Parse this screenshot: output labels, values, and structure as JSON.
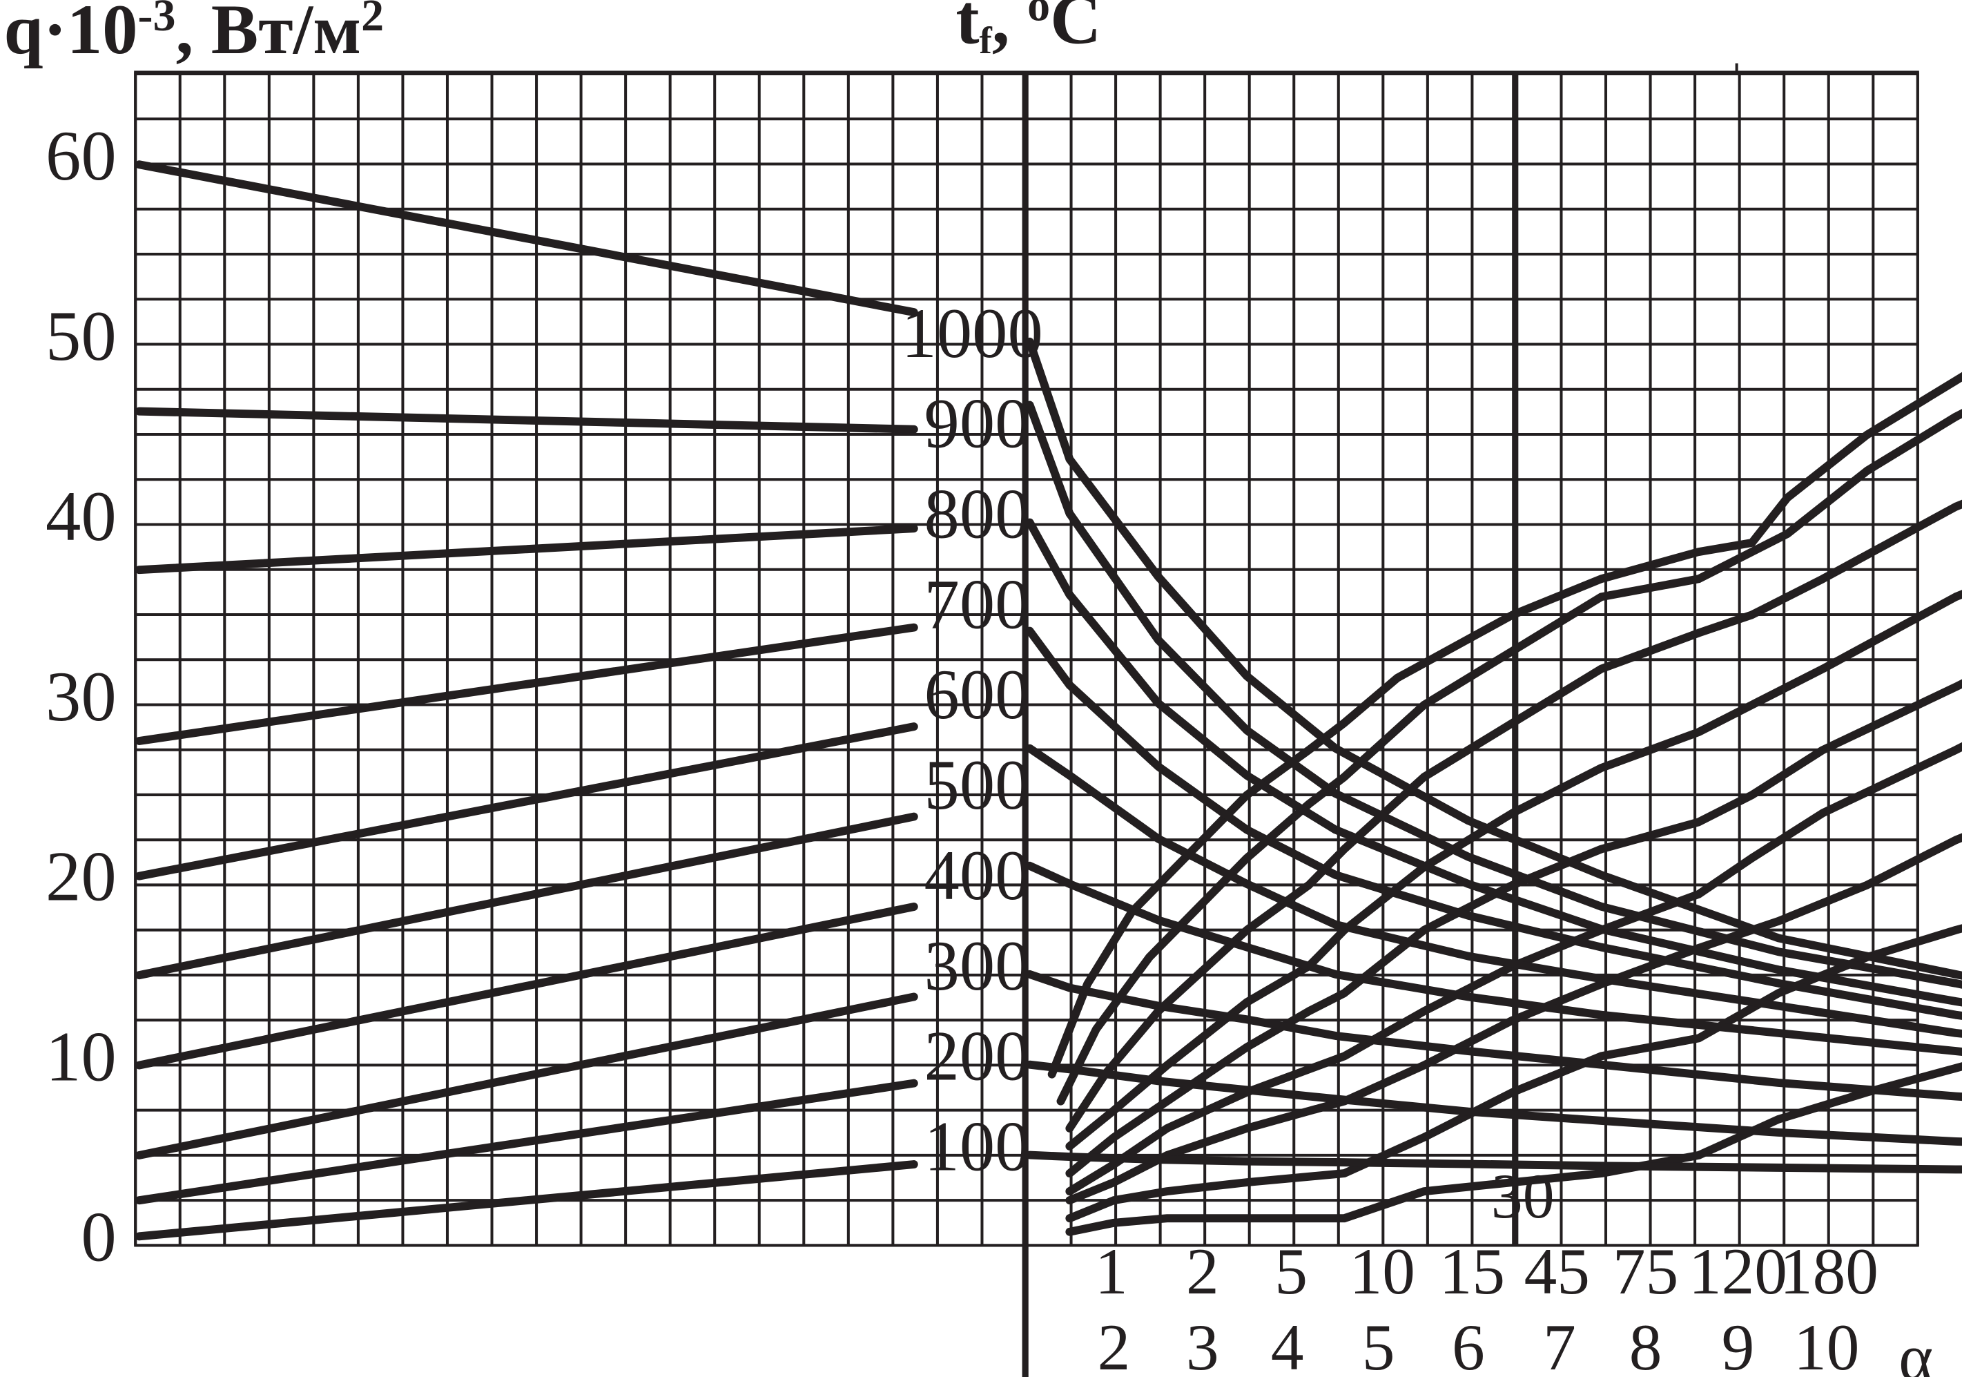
{
  "chart_data": {
    "type": "line",
    "y_axis_label": {
      "base": "q·10",
      "exp": "-3",
      "unit": ", Вт/м",
      "unit_exp": "2"
    },
    "t_axis_label": {
      "base": "t",
      "sub": "f",
      "sep": ", ",
      "deg": "o",
      "unit": "C"
    },
    "y_ticks": [
      "0",
      "10",
      "20",
      "30",
      "40",
      "50",
      "60"
    ],
    "ylim": [
      0,
      65
    ],
    "t_ticks": [
      "100",
      "200",
      "300",
      "400",
      "500",
      "600",
      "700",
      "800",
      "900",
      "1000"
    ],
    "bottom_row1": [
      "1",
      "2",
      "5",
      "10",
      "15",
      "45",
      "75",
      "120",
      "180"
    ],
    "bottom_row2": [
      "2",
      "3",
      "4",
      "5",
      "6",
      "7",
      "8",
      "9",
      "10"
    ],
    "alpha_label": "α",
    "annotation_30": "30",
    "left_nomogram_lines": [
      {
        "t_f": 100,
        "q_left": 0.5,
        "q_right": 4.5
      },
      {
        "t_f": 200,
        "q_left": 2.5,
        "q_right": 9.0
      },
      {
        "t_f": 300,
        "q_left": 5.0,
        "q_right": 13.8
      },
      {
        "t_f": 400,
        "q_left": 10.0,
        "q_right": 18.8
      },
      {
        "t_f": 500,
        "q_left": 15.0,
        "q_right": 23.8
      },
      {
        "t_f": 600,
        "q_left": 20.5,
        "q_right": 28.8
      },
      {
        "t_f": 700,
        "q_left": 28.0,
        "q_right": 34.3
      },
      {
        "t_f": 800,
        "q_left": 37.5,
        "q_right": 39.8
      },
      {
        "t_f": 900,
        "q_left": 46.3,
        "q_right": 45.3
      },
      {
        "t_f": 1000,
        "q_left": 60.0,
        "q_right": 51.8
      }
    ],
    "right_rising_curves": [
      [
        [
          0.3,
          19
        ],
        [
          0.7,
          29
        ],
        [
          1.2,
          37
        ],
        [
          2.5,
          50
        ],
        [
          3.2,
          55
        ],
        [
          3.6,
          58
        ],
        [
          4.2,
          63
        ],
        [
          5.5,
          70
        ],
        [
          6.5,
          74
        ],
        [
          7.6,
          77
        ],
        [
          8.2,
          78
        ],
        [
          8.6,
          83
        ],
        [
          9.5,
          90
        ],
        [
          10.5,
          96
        ],
        [
          11.5,
          102
        ],
        [
          13,
          110
        ],
        [
          14.8,
          118
        ],
        [
          16.5,
          123
        ],
        [
          18.6,
          128
        ]
      ],
      [
        [
          0.4,
          16
        ],
        [
          0.8,
          24
        ],
        [
          1.4,
          32
        ],
        [
          2.5,
          43
        ],
        [
          3.2,
          49
        ],
        [
          3.6,
          52
        ],
        [
          4.5,
          60
        ],
        [
          5.5,
          66
        ],
        [
          6.5,
          72
        ],
        [
          7.6,
          74
        ],
        [
          8.6,
          79
        ],
        [
          9.5,
          86
        ],
        [
          10.5,
          92
        ],
        [
          11.5,
          97
        ],
        [
          13,
          103
        ],
        [
          14.8,
          108
        ],
        [
          16.5,
          111
        ],
        [
          18.6,
          113
        ]
      ],
      [
        [
          0.5,
          13
        ],
        [
          0.9,
          19
        ],
        [
          1.5,
          26
        ],
        [
          2.5,
          35
        ],
        [
          3.2,
          40
        ],
        [
          3.6,
          44
        ],
        [
          4.5,
          52
        ],
        [
          5.5,
          58
        ],
        [
          6.5,
          64
        ],
        [
          7.6,
          68
        ],
        [
          8.2,
          70
        ],
        [
          9,
          74
        ],
        [
          10.5,
          82
        ],
        [
          11.5,
          86
        ],
        [
          12.5,
          92
        ],
        [
          14,
          96
        ],
        [
          15.5,
          99
        ],
        [
          18.6,
          101
        ]
      ],
      [
        [
          0.5,
          11
        ],
        [
          1,
          15
        ],
        [
          1.6,
          20
        ],
        [
          2.5,
          27
        ],
        [
          3.2,
          31
        ],
        [
          3.6,
          35
        ],
        [
          4.5,
          42
        ],
        [
          5.5,
          48
        ],
        [
          6.5,
          53
        ],
        [
          7.6,
          57
        ],
        [
          8.2,
          60
        ],
        [
          9,
          64
        ],
        [
          10.5,
          72
        ],
        [
          11.5,
          76
        ],
        [
          12.5,
          81
        ],
        [
          14,
          85
        ],
        [
          15.5,
          88
        ],
        [
          18.6,
          92
        ]
      ],
      [
        [
          0.5,
          8
        ],
        [
          1,
          12
        ],
        [
          1.6,
          16
        ],
        [
          2.5,
          22
        ],
        [
          3.2,
          26
        ],
        [
          3.6,
          28
        ],
        [
          4.5,
          35
        ],
        [
          5.5,
          40
        ],
        [
          6.5,
          44
        ],
        [
          7.6,
          47
        ],
        [
          8.2,
          50
        ],
        [
          9,
          55
        ],
        [
          10.5,
          62
        ],
        [
          11.5,
          67
        ],
        [
          12.5,
          71
        ],
        [
          14,
          74
        ],
        [
          15.5,
          78
        ],
        [
          18.6,
          82
        ]
      ],
      [
        [
          0.5,
          6
        ],
        [
          1,
          9
        ],
        [
          1.6,
          13
        ],
        [
          2.5,
          17
        ],
        [
          3.6,
          21
        ],
        [
          4.5,
          26
        ],
        [
          5.5,
          31
        ],
        [
          6.5,
          35
        ],
        [
          7.6,
          39
        ],
        [
          8.2,
          43
        ],
        [
          9,
          48
        ],
        [
          10.5,
          55
        ],
        [
          11.5,
          60
        ],
        [
          12.5,
          64
        ],
        [
          14,
          67
        ],
        [
          15.5,
          70
        ],
        [
          18.6,
          71
        ]
      ],
      [
        [
          0.5,
          5
        ],
        [
          1,
          7
        ],
        [
          1.6,
          10
        ],
        [
          2.5,
          13
        ],
        [
          3.6,
          16
        ],
        [
          4.5,
          20
        ],
        [
          5.5,
          25
        ],
        [
          6.5,
          29
        ],
        [
          7.6,
          33
        ],
        [
          8.5,
          36
        ],
        [
          9.5,
          40
        ],
        [
          10.5,
          45
        ],
        [
          11.5,
          49
        ],
        [
          13,
          53
        ],
        [
          14.8,
          56
        ],
        [
          16.5,
          58
        ],
        [
          18.6,
          59
        ]
      ],
      [
        [
          0.5,
          3
        ],
        [
          1,
          5
        ],
        [
          1.6,
          6
        ],
        [
          2.5,
          7
        ],
        [
          3.6,
          8
        ],
        [
          4.5,
          12
        ],
        [
          5.5,
          17
        ],
        [
          6.5,
          21
        ],
        [
          7.6,
          23
        ],
        [
          8.5,
          28
        ],
        [
          9.5,
          32
        ],
        [
          10.5,
          35
        ],
        [
          12,
          39
        ],
        [
          13.5,
          42
        ],
        [
          15,
          43
        ],
        [
          16.5,
          44
        ],
        [
          18.6,
          44
        ]
      ],
      [
        [
          0.5,
          1.5
        ],
        [
          1,
          2.5
        ],
        [
          1.6,
          3
        ],
        [
          2.5,
          3
        ],
        [
          3.6,
          3
        ],
        [
          4.5,
          6
        ],
        [
          5.5,
          7
        ],
        [
          6.5,
          8
        ],
        [
          7.6,
          10
        ],
        [
          8.5,
          14
        ],
        [
          9.5,
          17
        ],
        [
          11,
          21
        ],
        [
          12.5,
          25
        ],
        [
          14.5,
          28
        ],
        [
          16.5,
          29
        ],
        [
          18.6,
          29
        ]
      ]
    ],
    "right_falling_curves": [
      [
        [
          0.05,
          1000
        ],
        [
          0.5,
          870
        ],
        [
          1.5,
          740
        ],
        [
          2.5,
          630
        ],
        [
          3.5,
          550
        ],
        [
          5,
          470
        ],
        [
          6.5,
          410
        ],
        [
          8.5,
          340
        ],
        [
          10.5,
          300
        ],
        [
          12.5,
          260
        ],
        [
          14.5,
          230
        ],
        [
          16.5,
          215
        ],
        [
          18.6,
          200
        ]
      ],
      [
        [
          0.05,
          930
        ],
        [
          0.5,
          810
        ],
        [
          1.5,
          670
        ],
        [
          2.5,
          570
        ],
        [
          3.5,
          500
        ],
        [
          5,
          430
        ],
        [
          6.5,
          375
        ],
        [
          8.5,
          325
        ],
        [
          10.5,
          290
        ],
        [
          12.5,
          250
        ],
        [
          14.5,
          220
        ],
        [
          16.5,
          205
        ],
        [
          18.6,
          190
        ]
      ],
      [
        [
          0.05,
          800
        ],
        [
          0.5,
          720
        ],
        [
          1.5,
          600
        ],
        [
          2.5,
          520
        ],
        [
          3.5,
          460
        ],
        [
          5,
          400
        ],
        [
          6.5,
          350
        ],
        [
          8.5,
          305
        ],
        [
          10.5,
          270
        ],
        [
          12.5,
          240
        ],
        [
          14.5,
          210
        ],
        [
          16.5,
          195
        ],
        [
          18.6,
          180
        ]
      ],
      [
        [
          0.05,
          680
        ],
        [
          0.5,
          620
        ],
        [
          1.5,
          530
        ],
        [
          2.5,
          460
        ],
        [
          3.5,
          410
        ],
        [
          5,
          365
        ],
        [
          6.5,
          330
        ],
        [
          8.5,
          290
        ],
        [
          10.5,
          255
        ],
        [
          12.5,
          230
        ],
        [
          14.5,
          200
        ],
        [
          16.5,
          185
        ],
        [
          18.6,
          170
        ]
      ],
      [
        [
          0.05,
          550
        ],
        [
          0.5,
          520
        ],
        [
          1.5,
          450
        ],
        [
          2.5,
          400
        ],
        [
          3.5,
          355
        ],
        [
          5,
          320
        ],
        [
          6.5,
          295
        ],
        [
          8.5,
          265
        ],
        [
          10.5,
          235
        ],
        [
          12.5,
          215
        ],
        [
          14.5,
          190
        ],
        [
          16.5,
          175
        ],
        [
          18.6,
          155
        ]
      ],
      [
        [
          0.05,
          420
        ],
        [
          0.5,
          400
        ],
        [
          1.5,
          360
        ],
        [
          2.5,
          330
        ],
        [
          3.5,
          300
        ],
        [
          5,
          275
        ],
        [
          6.5,
          255
        ],
        [
          8.5,
          235
        ],
        [
          10.5,
          215
        ],
        [
          12.5,
          195
        ],
        [
          14.5,
          175
        ],
        [
          16.5,
          160
        ],
        [
          18.6,
          145
        ]
      ],
      [
        [
          0.05,
          300
        ],
        [
          0.5,
          285
        ],
        [
          1.5,
          265
        ],
        [
          2.5,
          250
        ],
        [
          3.5,
          232
        ],
        [
          5,
          215
        ],
        [
          6.5,
          200
        ],
        [
          8.5,
          180
        ],
        [
          10.5,
          165
        ],
        [
          12.5,
          152
        ],
        [
          14.5,
          140
        ],
        [
          16.5,
          135
        ],
        [
          18.6,
          130
        ]
      ],
      [
        [
          0.05,
          200
        ],
        [
          0.5,
          195
        ],
        [
          1.5,
          182
        ],
        [
          2.5,
          172
        ],
        [
          3.5,
          162
        ],
        [
          5,
          148
        ],
        [
          6.5,
          138
        ],
        [
          8.5,
          125
        ],
        [
          10.5,
          115
        ],
        [
          12.5,
          108
        ],
        [
          14.5,
          104
        ],
        [
          16.5,
          102
        ],
        [
          18.6,
          100
        ]
      ],
      [
        [
          0.05,
          100
        ],
        [
          0.5,
          98
        ],
        [
          1.5,
          95
        ],
        [
          2.5,
          93
        ],
        [
          3.5,
          92
        ],
        [
          5,
          90
        ],
        [
          6.5,
          88
        ],
        [
          8.5,
          86
        ],
        [
          10.5,
          84
        ],
        [
          12.5,
          83
        ],
        [
          14.5,
          82
        ],
        [
          16.5,
          81
        ],
        [
          18.6,
          80
        ]
      ]
    ]
  }
}
